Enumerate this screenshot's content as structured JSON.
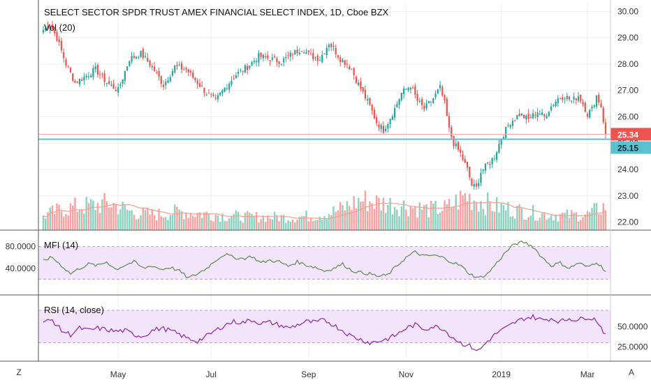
{
  "chart_data": [
    {
      "type": "candlestick",
      "title": "SELECT SECTOR SPDR TRUST AMEX FINANCIAL SELECT INDEX, 1D, Cboe BZX",
      "volume_label": "Vol (20)",
      "ylim": [
        21.7,
        30.3
      ],
      "price_ticks": [
        "30.00",
        "29.00",
        "28.00",
        "27.00",
        "26.00",
        "25.00",
        "24.00",
        "23.00",
        "22.00"
      ],
      "price_tick_values": [
        30,
        29,
        28,
        27,
        26,
        25,
        24,
        23,
        22
      ],
      "last_price": "25.34",
      "last_price_value": 25.34,
      "level_line": "25.15",
      "level_line_value": 25.15,
      "close_anchors": [
        [
          0,
          29.3
        ],
        [
          3,
          29.5
        ],
        [
          6,
          29.0
        ],
        [
          10,
          28.0
        ],
        [
          14,
          27.3
        ],
        [
          18,
          27.5
        ],
        [
          23,
          27.8
        ],
        [
          28,
          27.3
        ],
        [
          33,
          27.0
        ],
        [
          38,
          28.2
        ],
        [
          43,
          28.4
        ],
        [
          48,
          27.9
        ],
        [
          53,
          27.2
        ],
        [
          58,
          27.9
        ],
        [
          63,
          27.8
        ],
        [
          68,
          27.3
        ],
        [
          72,
          26.9
        ],
        [
          76,
          26.6
        ],
        [
          80,
          27.1
        ],
        [
          85,
          27.6
        ],
        [
          90,
          27.9
        ],
        [
          95,
          28.3
        ],
        [
          100,
          28.2
        ],
        [
          105,
          28.1
        ],
        [
          110,
          28.4
        ],
        [
          114,
          28.6
        ],
        [
          118,
          28.3
        ],
        [
          122,
          28.2
        ],
        [
          126,
          28.8
        ],
        [
          128,
          28.6
        ],
        [
          131,
          28.2
        ],
        [
          134,
          28.0
        ],
        [
          136,
          27.8
        ],
        [
          138,
          27.4
        ],
        [
          141,
          26.9
        ],
        [
          144,
          26.4
        ],
        [
          147,
          25.8
        ],
        [
          150,
          25.5
        ],
        [
          152,
          25.8
        ],
        [
          155,
          26.3
        ],
        [
          158,
          26.9
        ],
        [
          162,
          27.2
        ],
        [
          165,
          26.6
        ],
        [
          168,
          26.3
        ],
        [
          172,
          26.7
        ],
        [
          175,
          27.1
        ],
        [
          177,
          26.5
        ],
        [
          179,
          25.5
        ],
        [
          181,
          25.0
        ],
        [
          184,
          24.6
        ],
        [
          187,
          24.0
        ],
        [
          189,
          23.4
        ],
        [
          191,
          23.3
        ],
        [
          193,
          23.9
        ],
        [
          196,
          24.2
        ],
        [
          199,
          24.5
        ],
        [
          202,
          25.2
        ],
        [
          206,
          25.8
        ],
        [
          210,
          26.1
        ],
        [
          214,
          25.9
        ],
        [
          218,
          26.2
        ],
        [
          221,
          26.0
        ],
        [
          224,
          26.4
        ],
        [
          227,
          26.7
        ],
        [
          230,
          26.8
        ],
        [
          233,
          26.6
        ],
        [
          236,
          26.8
        ],
        [
          238,
          26.5
        ],
        [
          240,
          26.1
        ],
        [
          242,
          26.3
        ],
        [
          244,
          26.8
        ],
        [
          246,
          26.4
        ],
        [
          248,
          25.34
        ]
      ],
      "vol_anchors": [
        [
          0,
          0.3
        ],
        [
          10,
          0.45
        ],
        [
          20,
          0.5
        ],
        [
          30,
          0.55
        ],
        [
          40,
          0.35
        ],
        [
          50,
          0.32
        ],
        [
          60,
          0.38
        ],
        [
          70,
          0.34
        ],
        [
          80,
          0.3
        ],
        [
          90,
          0.27
        ],
        [
          100,
          0.27
        ],
        [
          110,
          0.26
        ],
        [
          120,
          0.3
        ],
        [
          130,
          0.4
        ],
        [
          140,
          0.62
        ],
        [
          150,
          0.55
        ],
        [
          160,
          0.5
        ],
        [
          170,
          0.42
        ],
        [
          178,
          0.45
        ],
        [
          186,
          0.7
        ],
        [
          192,
          0.6
        ],
        [
          200,
          0.48
        ],
        [
          210,
          0.4
        ],
        [
          220,
          0.33
        ],
        [
          230,
          0.3
        ],
        [
          240,
          0.32
        ],
        [
          248,
          0.5
        ]
      ],
      "x_ticks": [
        {
          "label": "May",
          "bar": 33
        },
        {
          "label": "Jul",
          "bar": 74
        },
        {
          "label": "Sep",
          "bar": 117
        },
        {
          "label": "Nov",
          "bar": 160
        },
        {
          "label": "2019",
          "bar": 202
        },
        {
          "label": "Mar",
          "bar": 240
        }
      ],
      "bars": 249
    },
    {
      "type": "line",
      "title": "MFI (14)",
      "ylim": [
        0,
        100
      ],
      "band": [
        20,
        80
      ],
      "y_ticks": [
        "80.0000",
        "40.0000"
      ],
      "y_tick_values": [
        80,
        40
      ],
      "anchors": [
        [
          0,
          55
        ],
        [
          4,
          60
        ],
        [
          8,
          45
        ],
        [
          12,
          30
        ],
        [
          16,
          40
        ],
        [
          20,
          48
        ],
        [
          24,
          45
        ],
        [
          28,
          52
        ],
        [
          32,
          38
        ],
        [
          36,
          46
        ],
        [
          40,
          52
        ],
        [
          44,
          40
        ],
        [
          48,
          45
        ],
        [
          52,
          38
        ],
        [
          56,
          42
        ],
        [
          60,
          35
        ],
        [
          64,
          22
        ],
        [
          68,
          30
        ],
        [
          72,
          40
        ],
        [
          76,
          55
        ],
        [
          80,
          66
        ],
        [
          84,
          60
        ],
        [
          88,
          58
        ],
        [
          92,
          62
        ],
        [
          96,
          50
        ],
        [
          100,
          55
        ],
        [
          104,
          52
        ],
        [
          108,
          44
        ],
        [
          112,
          52
        ],
        [
          116,
          46
        ],
        [
          120,
          42
        ],
        [
          124,
          35
        ],
        [
          128,
          40
        ],
        [
          132,
          48
        ],
        [
          136,
          36
        ],
        [
          140,
          32
        ],
        [
          144,
          30
        ],
        [
          148,
          25
        ],
        [
          152,
          28
        ],
        [
          156,
          45
        ],
        [
          160,
          60
        ],
        [
          164,
          70
        ],
        [
          168,
          62
        ],
        [
          172,
          64
        ],
        [
          176,
          60
        ],
        [
          180,
          52
        ],
        [
          184,
          45
        ],
        [
          188,
          30
        ],
        [
          192,
          22
        ],
        [
          196,
          30
        ],
        [
          200,
          50
        ],
        [
          204,
          70
        ],
        [
          208,
          85
        ],
        [
          212,
          88
        ],
        [
          216,
          80
        ],
        [
          220,
          60
        ],
        [
          224,
          45
        ],
        [
          228,
          50
        ],
        [
          232,
          40
        ],
        [
          236,
          50
        ],
        [
          240,
          42
        ],
        [
          244,
          52
        ],
        [
          248,
          35
        ]
      ]
    },
    {
      "type": "line",
      "title": "RSI (14, close)",
      "ylim": [
        15,
        82
      ],
      "band": [
        30,
        70
      ],
      "y_ticks": [
        "50.0000",
        "25.0000"
      ],
      "y_tick_values": [
        50,
        25
      ],
      "anchors": [
        [
          0,
          55
        ],
        [
          4,
          58
        ],
        [
          8,
          45
        ],
        [
          12,
          40
        ],
        [
          16,
          48
        ],
        [
          20,
          45
        ],
        [
          24,
          48
        ],
        [
          28,
          46
        ],
        [
          32,
          44
        ],
        [
          36,
          45
        ],
        [
          40,
          40
        ],
        [
          44,
          38
        ],
        [
          48,
          45
        ],
        [
          52,
          48
        ],
        [
          56,
          45
        ],
        [
          60,
          40
        ],
        [
          64,
          35
        ],
        [
          68,
          32
        ],
        [
          72,
          38
        ],
        [
          76,
          45
        ],
        [
          80,
          52
        ],
        [
          84,
          56
        ],
        [
          88,
          55
        ],
        [
          92,
          58
        ],
        [
          96,
          54
        ],
        [
          100,
          55
        ],
        [
          104,
          52
        ],
        [
          108,
          48
        ],
        [
          112,
          52
        ],
        [
          116,
          56
        ],
        [
          120,
          55
        ],
        [
          124,
          58
        ],
        [
          128,
          52
        ],
        [
          132,
          45
        ],
        [
          136,
          38
        ],
        [
          140,
          34
        ],
        [
          144,
          30
        ],
        [
          148,
          32
        ],
        [
          152,
          35
        ],
        [
          156,
          40
        ],
        [
          160,
          48
        ],
        [
          164,
          52
        ],
        [
          168,
          47
        ],
        [
          172,
          50
        ],
        [
          176,
          48
        ],
        [
          180,
          38
        ],
        [
          184,
          30
        ],
        [
          188,
          26
        ],
        [
          192,
          20
        ],
        [
          196,
          32
        ],
        [
          200,
          42
        ],
        [
          204,
          48
        ],
        [
          208,
          55
        ],
        [
          212,
          60
        ],
        [
          216,
          62
        ],
        [
          220,
          58
        ],
        [
          224,
          60
        ],
        [
          228,
          56
        ],
        [
          232,
          60
        ],
        [
          236,
          58
        ],
        [
          240,
          62
        ],
        [
          244,
          58
        ],
        [
          248,
          40
        ]
      ]
    }
  ],
  "ui": {
    "left_button": "Z",
    "right_button": "A",
    "colors": {
      "up": "#26a69a",
      "down": "#ef5350",
      "vol_up": "#8ed1c0",
      "vol_down": "#f5a3a3",
      "vol_ma": "#f0a08c",
      "mfi_line": "#5d8a4a",
      "rsi_line": "#8e24aa",
      "band_fill": "#f1e4fb",
      "level_line": "#5bc0cf",
      "grid": "#eeeeee",
      "separator": "#555555"
    }
  }
}
